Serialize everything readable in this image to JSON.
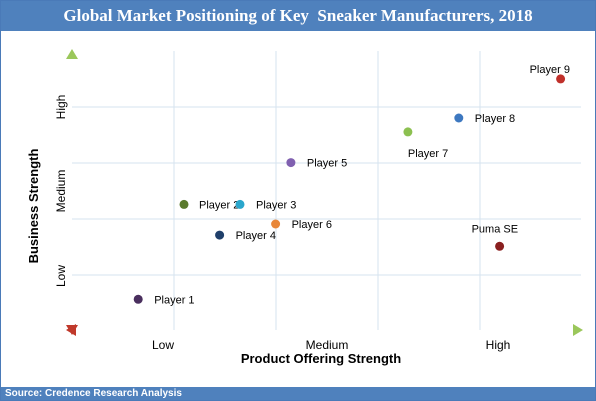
{
  "title": "Global Market Positioning of Key  Sneaker Manufacturers, 2018",
  "source": "Source: Credence Research Analysis",
  "chart_data": {
    "type": "scatter",
    "title": "Global Market Positioning of Key  Sneaker Manufacturers, 2018",
    "xlabel": "Product Offering Strength",
    "ylabel": "Business Strength",
    "x_categories": [
      "Low",
      "Medium",
      "High"
    ],
    "y_categories": [
      "Low",
      "Medium",
      "High"
    ],
    "xlim": [
      0,
      10
    ],
    "ylim": [
      0,
      10
    ],
    "grid": true,
    "points": [
      {
        "label": "Player 1",
        "x": 1.3,
        "y": 1.1,
        "color": "#4a2f5e"
      },
      {
        "label": "Player 2",
        "x": 2.2,
        "y": 4.5,
        "color": "#5a7a2c"
      },
      {
        "label": "Player 3",
        "x": 3.3,
        "y": 4.5,
        "color": "#2aa6cc"
      },
      {
        "label": "Player 4",
        "x": 2.9,
        "y": 3.4,
        "color": "#1f3f6a"
      },
      {
        "label": "Player 5",
        "x": 4.3,
        "y": 6.0,
        "color": "#8060b0"
      },
      {
        "label": "Player 6",
        "x": 4.0,
        "y": 3.8,
        "color": "#e8873a"
      },
      {
        "label": "Player 7",
        "x": 6.6,
        "y": 7.1,
        "color": "#8cc050"
      },
      {
        "label": "Player 8",
        "x": 7.6,
        "y": 7.6,
        "color": "#3d78c0"
      },
      {
        "label": "Player 9",
        "x": 9.6,
        "y": 9.0,
        "color": "#c0302a"
      },
      {
        "label": "Puma SE",
        "x": 8.4,
        "y": 3.0,
        "color": "#8a1f1f"
      }
    ]
  }
}
